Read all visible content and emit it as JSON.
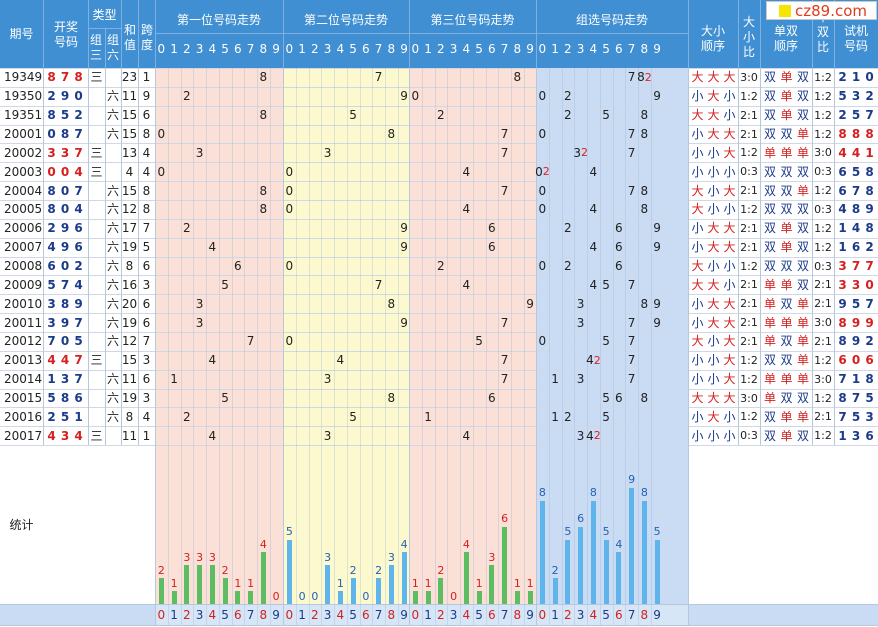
{
  "logo": "cz89.com",
  "header": {
    "period": "期号",
    "draw": "开奖号码",
    "type": "类型",
    "type_g3": "组三",
    "type_g6": "组六",
    "sum": "和值",
    "span": "跨度",
    "pos1": "第一位号码走势",
    "pos2": "第二位号码走势",
    "pos3": "第三位号码走势",
    "group": "组选号码走势",
    "size_order": "大小顺序",
    "size_ratio": "大小比",
    "oe_order": "单双顺序",
    "oe_ratio": "单双比",
    "test": "试机号码",
    "digits": [
      "0",
      "1",
      "2",
      "3",
      "4",
      "5",
      "6",
      "7",
      "8",
      "9"
    ]
  },
  "stats_label": "统计",
  "rows": [
    {
      "period": "19349",
      "draw": [
        "8",
        "7",
        "8"
      ],
      "g3": "三",
      "g6": "",
      "sum": "23",
      "span": "1",
      "size": [
        "大",
        "大",
        "大"
      ],
      "sratio": "3:0",
      "oe": [
        "双",
        "单",
        "双"
      ],
      "oratio": "1:2",
      "test": [
        "2",
        "1",
        "0"
      ],
      "group": [
        {
          "d": 7,
          "c": 1
        },
        {
          "d": 8,
          "c": 2
        }
      ]
    },
    {
      "period": "19350",
      "draw": [
        "2",
        "9",
        "0"
      ],
      "g3": "",
      "g6": "六",
      "sum": "11",
      "span": "9",
      "size": [
        "小",
        "大",
        "小"
      ],
      "sratio": "1:2",
      "oe": [
        "双",
        "单",
        "双"
      ],
      "oratio": "1:2",
      "test": [
        "5",
        "3",
        "2"
      ],
      "group": [
        {
          "d": 0,
          "c": 1
        },
        {
          "d": 2,
          "c": 1
        },
        {
          "d": 9,
          "c": 1
        }
      ]
    },
    {
      "period": "19351",
      "draw": [
        "8",
        "5",
        "2"
      ],
      "g3": "",
      "g6": "六",
      "sum": "15",
      "span": "6",
      "size": [
        "大",
        "大",
        "小"
      ],
      "sratio": "2:1",
      "oe": [
        "双",
        "单",
        "双"
      ],
      "oratio": "1:2",
      "test": [
        "2",
        "5",
        "7"
      ],
      "group": [
        {
          "d": 2,
          "c": 1
        },
        {
          "d": 5,
          "c": 1
        },
        {
          "d": 8,
          "c": 1
        }
      ]
    },
    {
      "period": "20001",
      "draw": [
        "0",
        "8",
        "7"
      ],
      "g3": "",
      "g6": "六",
      "sum": "15",
      "span": "8",
      "size": [
        "小",
        "大",
        "大"
      ],
      "sratio": "2:1",
      "oe": [
        "双",
        "双",
        "单"
      ],
      "oratio": "1:2",
      "test": [
        "8",
        "8",
        "8"
      ],
      "group": [
        {
          "d": 0,
          "c": 1
        },
        {
          "d": 7,
          "c": 1
        },
        {
          "d": 8,
          "c": 1
        }
      ]
    },
    {
      "period": "20002",
      "draw": [
        "3",
        "3",
        "7"
      ],
      "g3": "三",
      "g6": "",
      "sum": "13",
      "span": "4",
      "size": [
        "小",
        "小",
        "大"
      ],
      "sratio": "1:2",
      "oe": [
        "单",
        "单",
        "单"
      ],
      "oratio": "3:0",
      "test": [
        "4",
        "4",
        "1"
      ],
      "group": [
        {
          "d": 3,
          "c": 2
        },
        {
          "d": 7,
          "c": 1
        }
      ]
    },
    {
      "period": "20003",
      "draw": [
        "0",
        "0",
        "4"
      ],
      "g3": "三",
      "g6": "",
      "sum": "4",
      "span": "4",
      "size": [
        "小",
        "小",
        "小"
      ],
      "sratio": "0:3",
      "oe": [
        "双",
        "双",
        "双"
      ],
      "oratio": "0:3",
      "test": [
        "6",
        "5",
        "8"
      ],
      "group": [
        {
          "d": 0,
          "c": 2
        },
        {
          "d": 4,
          "c": 1
        }
      ]
    },
    {
      "period": "20004",
      "draw": [
        "8",
        "0",
        "7"
      ],
      "g3": "",
      "g6": "六",
      "sum": "15",
      "span": "8",
      "size": [
        "大",
        "小",
        "大"
      ],
      "sratio": "2:1",
      "oe": [
        "双",
        "双",
        "单"
      ],
      "oratio": "1:2",
      "test": [
        "6",
        "7",
        "8"
      ],
      "group": [
        {
          "d": 0,
          "c": 1
        },
        {
          "d": 7,
          "c": 1
        },
        {
          "d": 8,
          "c": 1
        }
      ]
    },
    {
      "period": "20005",
      "draw": [
        "8",
        "0",
        "4"
      ],
      "g3": "",
      "g6": "六",
      "sum": "12",
      "span": "8",
      "size": [
        "大",
        "小",
        "小"
      ],
      "sratio": "1:2",
      "oe": [
        "双",
        "双",
        "双"
      ],
      "oratio": "0:3",
      "test": [
        "4",
        "8",
        "9"
      ],
      "group": [
        {
          "d": 0,
          "c": 1
        },
        {
          "d": 4,
          "c": 1
        },
        {
          "d": 8,
          "c": 1
        }
      ]
    },
    {
      "period": "20006",
      "draw": [
        "2",
        "9",
        "6"
      ],
      "g3": "",
      "g6": "六",
      "sum": "17",
      "span": "7",
      "size": [
        "小",
        "大",
        "大"
      ],
      "sratio": "2:1",
      "oe": [
        "双",
        "单",
        "双"
      ],
      "oratio": "1:2",
      "test": [
        "1",
        "4",
        "8"
      ],
      "group": [
        {
          "d": 2,
          "c": 1
        },
        {
          "d": 6,
          "c": 1
        },
        {
          "d": 9,
          "c": 1
        }
      ]
    },
    {
      "period": "20007",
      "draw": [
        "4",
        "9",
        "6"
      ],
      "g3": "",
      "g6": "六",
      "sum": "19",
      "span": "5",
      "size": [
        "小",
        "大",
        "大"
      ],
      "sratio": "2:1",
      "oe": [
        "双",
        "单",
        "双"
      ],
      "oratio": "1:2",
      "test": [
        "1",
        "6",
        "2"
      ],
      "group": [
        {
          "d": 4,
          "c": 1
        },
        {
          "d": 6,
          "c": 1
        },
        {
          "d": 9,
          "c": 1
        }
      ]
    },
    {
      "period": "20008",
      "draw": [
        "6",
        "0",
        "2"
      ],
      "g3": "",
      "g6": "六",
      "sum": "8",
      "span": "6",
      "size": [
        "大",
        "小",
        "小"
      ],
      "sratio": "1:2",
      "oe": [
        "双",
        "双",
        "双"
      ],
      "oratio": "0:3",
      "test": [
        "3",
        "7",
        "7"
      ],
      "group": [
        {
          "d": 0,
          "c": 1
        },
        {
          "d": 2,
          "c": 1
        },
        {
          "d": 6,
          "c": 1
        }
      ]
    },
    {
      "period": "20009",
      "draw": [
        "5",
        "7",
        "4"
      ],
      "g3": "",
      "g6": "六",
      "sum": "16",
      "span": "3",
      "size": [
        "大",
        "大",
        "小"
      ],
      "sratio": "2:1",
      "oe": [
        "单",
        "单",
        "双"
      ],
      "oratio": "2:1",
      "test": [
        "3",
        "3",
        "0"
      ],
      "group": [
        {
          "d": 4,
          "c": 1
        },
        {
          "d": 5,
          "c": 1
        },
        {
          "d": 7,
          "c": 1
        }
      ]
    },
    {
      "period": "20010",
      "draw": [
        "3",
        "8",
        "9"
      ],
      "g3": "",
      "g6": "六",
      "sum": "20",
      "span": "6",
      "size": [
        "小",
        "大",
        "大"
      ],
      "sratio": "2:1",
      "oe": [
        "单",
        "双",
        "单"
      ],
      "oratio": "2:1",
      "test": [
        "9",
        "5",
        "7"
      ],
      "group": [
        {
          "d": 3,
          "c": 1
        },
        {
          "d": 8,
          "c": 1
        },
        {
          "d": 9,
          "c": 1
        }
      ]
    },
    {
      "period": "20011",
      "draw": [
        "3",
        "9",
        "7"
      ],
      "g3": "",
      "g6": "六",
      "sum": "19",
      "span": "6",
      "size": [
        "小",
        "大",
        "大"
      ],
      "sratio": "2:1",
      "oe": [
        "单",
        "单",
        "单"
      ],
      "oratio": "3:0",
      "test": [
        "8",
        "9",
        "9"
      ],
      "group": [
        {
          "d": 3,
          "c": 1
        },
        {
          "d": 7,
          "c": 1
        },
        {
          "d": 9,
          "c": 1
        }
      ]
    },
    {
      "period": "20012",
      "draw": [
        "7",
        "0",
        "5"
      ],
      "g3": "",
      "g6": "六",
      "sum": "12",
      "span": "7",
      "size": [
        "大",
        "小",
        "大"
      ],
      "sratio": "2:1",
      "oe": [
        "单",
        "双",
        "单"
      ],
      "oratio": "2:1",
      "test": [
        "8",
        "9",
        "2"
      ],
      "group": [
        {
          "d": 0,
          "c": 1
        },
        {
          "d": 5,
          "c": 1
        },
        {
          "d": 7,
          "c": 1
        }
      ]
    },
    {
      "period": "20013",
      "draw": [
        "4",
        "4",
        "7"
      ],
      "g3": "三",
      "g6": "",
      "sum": "15",
      "span": "3",
      "size": [
        "小",
        "小",
        "大"
      ],
      "sratio": "1:2",
      "oe": [
        "双",
        "双",
        "单"
      ],
      "oratio": "1:2",
      "test": [
        "6",
        "0",
        "6"
      ],
      "group": [
        {
          "d": 4,
          "c": 2
        },
        {
          "d": 7,
          "c": 1
        }
      ]
    },
    {
      "period": "20014",
      "draw": [
        "1",
        "3",
        "7"
      ],
      "g3": "",
      "g6": "六",
      "sum": "11",
      "span": "6",
      "size": [
        "小",
        "小",
        "大"
      ],
      "sratio": "1:2",
      "oe": [
        "单",
        "单",
        "单"
      ],
      "oratio": "3:0",
      "test": [
        "7",
        "1",
        "8"
      ],
      "group": [
        {
          "d": 1,
          "c": 1
        },
        {
          "d": 3,
          "c": 1
        },
        {
          "d": 7,
          "c": 1
        }
      ]
    },
    {
      "period": "20015",
      "draw": [
        "5",
        "8",
        "6"
      ],
      "g3": "",
      "g6": "六",
      "sum": "19",
      "span": "3",
      "size": [
        "大",
        "大",
        "大"
      ],
      "sratio": "3:0",
      "oe": [
        "单",
        "双",
        "双"
      ],
      "oratio": "1:2",
      "test": [
        "8",
        "7",
        "5"
      ],
      "group": [
        {
          "d": 5,
          "c": 1
        },
        {
          "d": 6,
          "c": 1
        },
        {
          "d": 8,
          "c": 1
        }
      ]
    },
    {
      "period": "20016",
      "draw": [
        "2",
        "5",
        "1"
      ],
      "g3": "",
      "g6": "六",
      "sum": "8",
      "span": "4",
      "size": [
        "小",
        "大",
        "小"
      ],
      "sratio": "1:2",
      "oe": [
        "双",
        "单",
        "单"
      ],
      "oratio": "2:1",
      "test": [
        "7",
        "5",
        "3"
      ],
      "group": [
        {
          "d": 1,
          "c": 1
        },
        {
          "d": 2,
          "c": 1
        },
        {
          "d": 5,
          "c": 1
        }
      ]
    },
    {
      "period": "20017",
      "draw": [
        "4",
        "3",
        "4"
      ],
      "g3": "三",
      "g6": "",
      "sum": "11",
      "span": "1",
      "size": [
        "小",
        "小",
        "小"
      ],
      "sratio": "0:3",
      "oe": [
        "双",
        "单",
        "双"
      ],
      "oratio": "1:2",
      "test": [
        "1",
        "3",
        "6"
      ],
      "group": [
        {
          "d": 3,
          "c": 1
        },
        {
          "d": 4,
          "c": 2
        }
      ]
    }
  ],
  "chart_data": {
    "type": "bar",
    "categories": [
      "0",
      "1",
      "2",
      "3",
      "4",
      "5",
      "6",
      "7",
      "8",
      "9"
    ],
    "series": [
      {
        "name": "第一位号码走势",
        "values": [
          2,
          1,
          3,
          3,
          3,
          2,
          1,
          1,
          4,
          0
        ]
      },
      {
        "name": "第二位号码走势",
        "values": [
          5,
          0,
          0,
          3,
          1,
          2,
          0,
          2,
          3,
          4
        ]
      },
      {
        "name": "第三位号码走势",
        "values": [
          1,
          1,
          2,
          0,
          4,
          1,
          3,
          6,
          1,
          1
        ]
      },
      {
        "name": "组选号码走势",
        "values": [
          8,
          2,
          5,
          6,
          8,
          5,
          4,
          9,
          8,
          5
        ]
      }
    ]
  }
}
